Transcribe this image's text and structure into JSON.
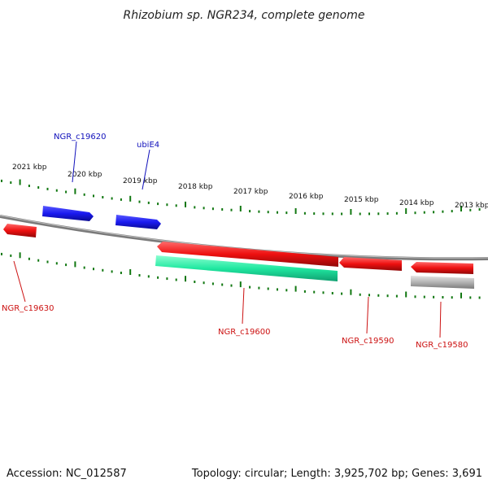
{
  "title": "Rhizobium sp. NGR234, complete genome",
  "footer": {
    "accession": "Accession: NC_012587",
    "summary": "Topology: circular; Length: 3,925,702 bp; Genes: 3,691"
  },
  "colors": {
    "forward_gene": "#1010ee",
    "reverse_gene": "#ee1010",
    "rna_gene": "#20e8a0",
    "pseudo_gene": "#b0b0b0",
    "backbone": "#7a7a7a",
    "tick": "#117711",
    "label_forward": "#1010bb",
    "label_reverse": "#cc1111"
  },
  "scale": {
    "labels": [
      "2021 kbp",
      "2020 kbp",
      "2019 kbp",
      "2018 kbp",
      "2017 kbp",
      "2016 kbp",
      "2015 kbp",
      "2014 kbp",
      "2013 kbp"
    ]
  },
  "genes": [
    {
      "name": "NGR_c19620",
      "strand": "forward",
      "type": "protein"
    },
    {
      "name": "ubiE4",
      "strand": "forward",
      "type": "protein"
    },
    {
      "name": "NGR_c19630",
      "strand": "reverse",
      "type": "protein"
    },
    {
      "name": "NGR_c19600",
      "strand": "reverse",
      "type": "protein"
    },
    {
      "name": "",
      "strand": "reverse",
      "type": "rna"
    },
    {
      "name": "NGR_c19590",
      "strand": "reverse",
      "type": "protein"
    },
    {
      "name": "NGR_c19580",
      "strand": "reverse",
      "type": "protein"
    },
    {
      "name": "",
      "strand": "reverse",
      "type": "pseudo"
    }
  ]
}
